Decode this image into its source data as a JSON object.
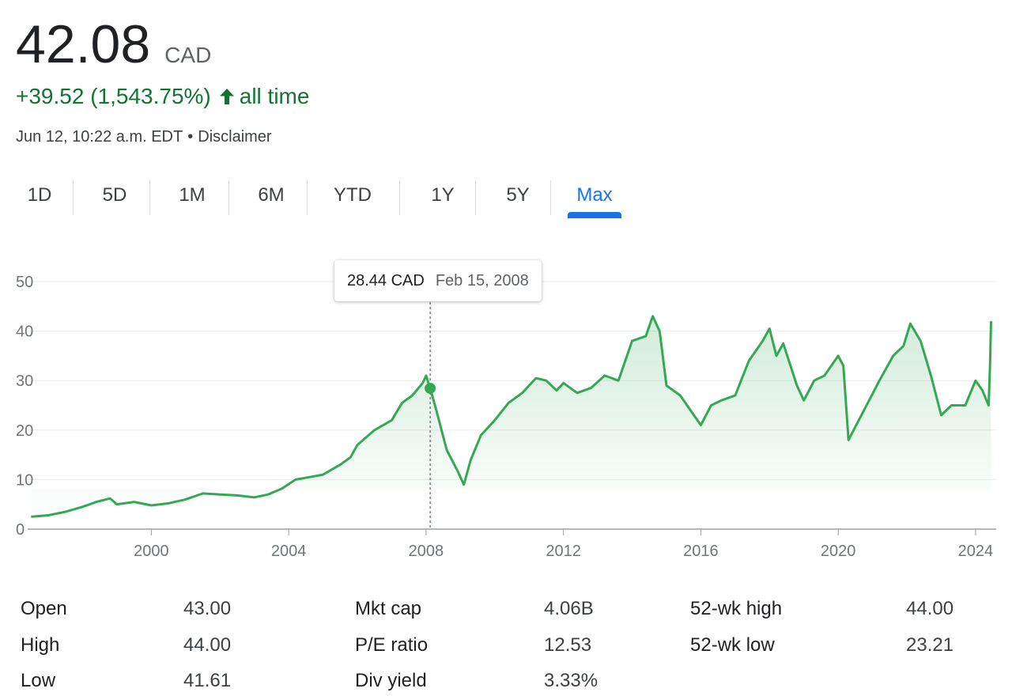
{
  "quote": {
    "price": "42.08",
    "currency": "CAD",
    "change": "+39.52 (1,543.75%)",
    "change_period": "all time",
    "timestamp": "Jun 12, 10:22 a.m. EDT",
    "disclaimer": "Disclaimer",
    "up_color": "#137333"
  },
  "tabs": [
    {
      "label": "1D",
      "active": false
    },
    {
      "label": "5D",
      "active": false
    },
    {
      "label": "1M",
      "active": false
    },
    {
      "label": "6M",
      "active": false
    },
    {
      "label": "YTD",
      "active": false
    },
    {
      "label": "1Y",
      "active": false
    },
    {
      "label": "5Y",
      "active": false
    },
    {
      "label": "Max",
      "active": true
    }
  ],
  "tooltip": {
    "value": "28.44 CAD",
    "date": "Feb 15, 2008"
  },
  "chart_data": {
    "type": "line",
    "title": "",
    "xlabel": "",
    "ylabel": "",
    "ylim": [
      0,
      50
    ],
    "xlim": [
      1996.4,
      2024.6
    ],
    "y_ticks": [
      0,
      10,
      20,
      30,
      40,
      50
    ],
    "x_ticks": [
      "2000",
      "2004",
      "2008",
      "2012",
      "2016",
      "2020",
      "2024"
    ],
    "grid": true,
    "line_color": "#34a853",
    "hover": {
      "x": 2008.12,
      "y": 28.44
    },
    "series": [
      {
        "x": [
          1996.5,
          1997.0,
          1997.5,
          1998.0,
          1998.4,
          1998.8,
          1999.0,
          1999.5,
          2000.0,
          2000.5,
          2001.0,
          2001.5,
          2002.0,
          2002.5,
          2003.0,
          2003.4,
          2003.8,
          2004.2,
          2004.6,
          2005.0,
          2005.5,
          2005.8,
          2006.0,
          2006.5,
          2007.0,
          2007.3,
          2007.6,
          2007.9,
          2008.0,
          2008.12,
          2008.3,
          2008.6,
          2008.9,
          2009.1,
          2009.3,
          2009.6,
          2010.0,
          2010.4,
          2010.8,
          2011.2,
          2011.5,
          2011.8,
          2012.0,
          2012.4,
          2012.8,
          2013.2,
          2013.6,
          2014.0,
          2014.4,
          2014.6,
          2014.8,
          2015.0,
          2015.4,
          2015.8,
          2016.0,
          2016.3,
          2016.6,
          2017.0,
          2017.4,
          2017.8,
          2018.0,
          2018.2,
          2018.4,
          2018.8,
          2019.0,
          2019.3,
          2019.6,
          2019.8,
          2020.0,
          2020.15,
          2020.3,
          2020.6,
          2020.9,
          2021.2,
          2021.6,
          2021.9,
          2022.1,
          2022.4,
          2022.7,
          2023.0,
          2023.3,
          2023.7,
          2024.0,
          2024.2,
          2024.38,
          2024.42,
          2024.45
        ],
        "values": [
          2.5,
          2.8,
          3.5,
          4.5,
          5.5,
          6.2,
          5.0,
          5.5,
          4.8,
          5.2,
          6.0,
          7.2,
          7.0,
          6.8,
          6.4,
          7.0,
          8.2,
          10.0,
          10.5,
          11.0,
          13.0,
          14.5,
          17.0,
          20.0,
          22.0,
          25.5,
          27.0,
          29.5,
          31.0,
          28.44,
          24.0,
          16.0,
          12.0,
          9.0,
          14.0,
          19.0,
          22.0,
          25.5,
          27.5,
          30.5,
          30.0,
          28.0,
          29.5,
          27.5,
          28.5,
          31.0,
          30.0,
          38.0,
          39.0,
          43.0,
          40.0,
          29.0,
          27.0,
          23.0,
          21.0,
          25.0,
          26.0,
          27.0,
          34.0,
          38.0,
          40.5,
          35.0,
          37.5,
          29.0,
          26.0,
          30.0,
          31.0,
          33.0,
          35.0,
          33.0,
          18.0,
          22.0,
          26.0,
          30.0,
          35.0,
          37.0,
          41.5,
          38.0,
          31.0,
          23.0,
          25.0,
          25.0,
          30.0,
          28.0,
          25.0,
          33.0,
          42.0
        ]
      }
    ]
  },
  "stats": {
    "rows": [
      [
        {
          "label": "Open",
          "value": "43.00"
        },
        {
          "label": "Mkt cap",
          "value": "4.06B"
        },
        {
          "label": "52-wk high",
          "value": "44.00"
        }
      ],
      [
        {
          "label": "High",
          "value": "44.00"
        },
        {
          "label": "P/E ratio",
          "value": "12.53"
        },
        {
          "label": "52-wk low",
          "value": "23.21"
        }
      ],
      [
        {
          "label": "Low",
          "value": "41.61"
        },
        {
          "label": "Div yield",
          "value": "3.33%"
        },
        null
      ]
    ]
  }
}
